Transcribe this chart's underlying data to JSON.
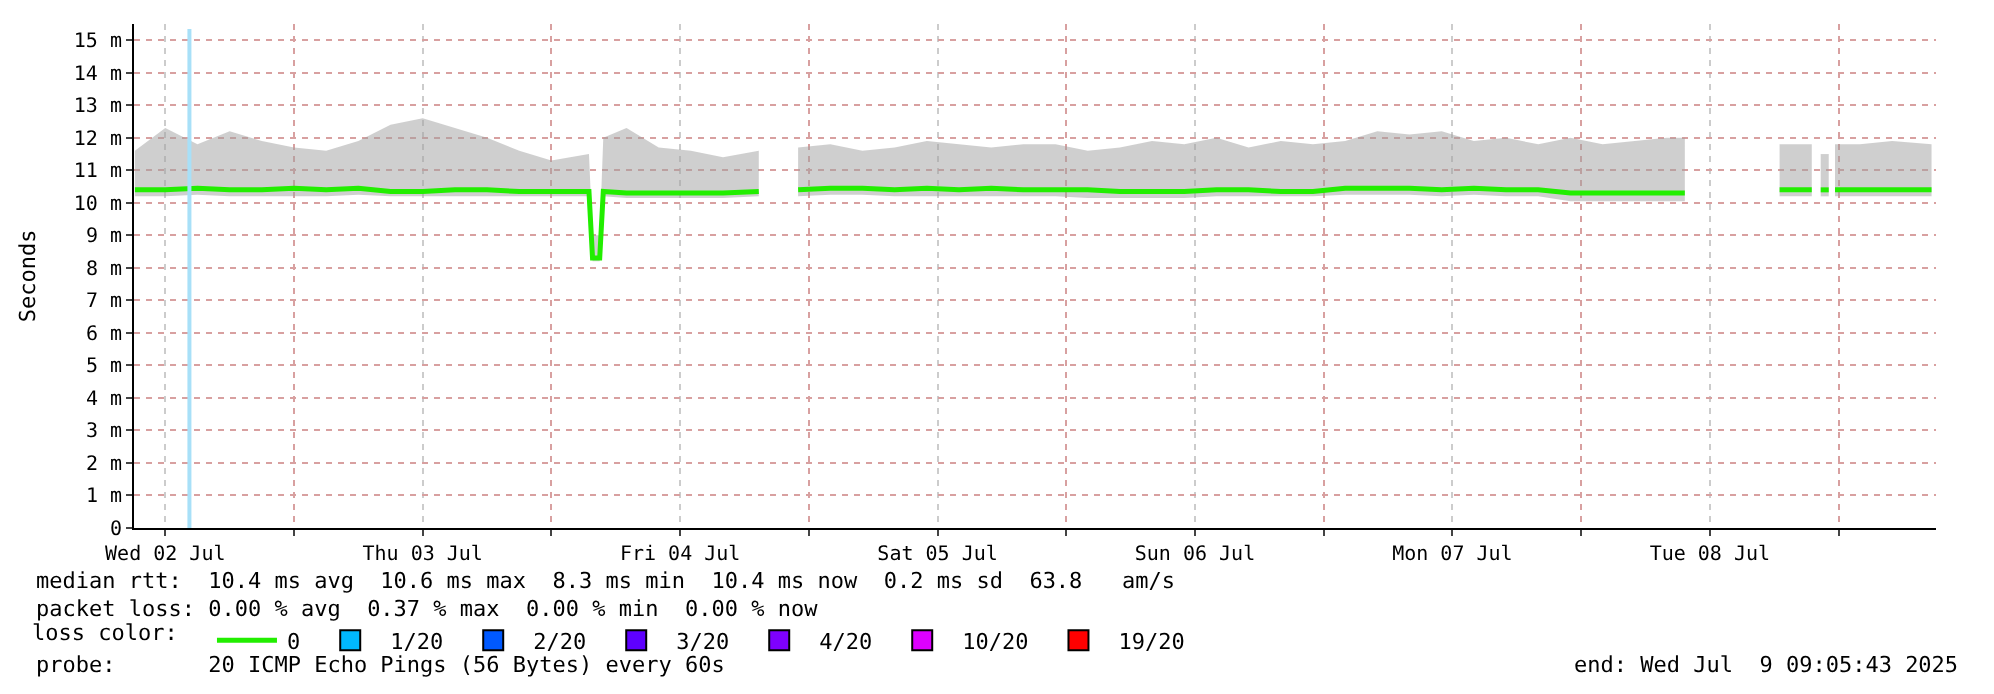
{
  "chart_data": {
    "type": "line",
    "ylabel": "Seconds",
    "legend_title": "loss color:",
    "legend": "bottom left",
    "grid": true,
    "line_style": "solid",
    "xlim": [
      "2025-07-02T09:05",
      "2025-07-09T09:05"
    ],
    "xticks": [
      {
        "value": "2025-07-02T12:00",
        "label": "Wed 02 Jul"
      },
      {
        "value": "2025-07-03T00:00",
        "label": null
      },
      {
        "value": "2025-07-03T12:00",
        "label": "Thu 03 Jul"
      },
      {
        "value": "2025-07-04T00:00",
        "label": null
      },
      {
        "value": "2025-07-04T12:00",
        "label": "Fri 04 Jul"
      },
      {
        "value": "2025-07-05T00:00",
        "label": null
      },
      {
        "value": "2025-07-05T12:00",
        "label": "Sat 05 Jul"
      },
      {
        "value": "2025-07-06T00:00",
        "label": null
      },
      {
        "value": "2025-07-06T12:00",
        "label": "Sun 06 Jul"
      },
      {
        "value": "2025-07-07T00:00",
        "label": null
      },
      {
        "value": "2025-07-07T12:00",
        "label": "Mon 07 Jul"
      },
      {
        "value": "2025-07-08T00:00",
        "label": null
      },
      {
        "value": "2025-07-08T12:00",
        "label": "Tue 08 Jul"
      },
      {
        "value": "2025-07-09T00:00",
        "label": null
      }
    ],
    "ylim": [
      0,
      15.5
    ],
    "yticks": [
      0,
      {
        "value": 1,
        "label": "1 m"
      },
      {
        "value": 2,
        "label": "2 m"
      },
      {
        "value": 3,
        "label": "3 m"
      },
      {
        "value": 4,
        "label": "4 m"
      },
      {
        "value": 5,
        "label": "5 m"
      },
      {
        "value": 6,
        "label": "6 m"
      },
      {
        "value": 7,
        "label": "7 m"
      },
      {
        "value": 8,
        "label": "8 m"
      },
      {
        "value": 9,
        "label": "9 m"
      },
      {
        "value": 10,
        "label": "10 m"
      },
      {
        "value": 11,
        "label": "11 m"
      },
      {
        "value": 12,
        "label": "12 m"
      },
      {
        "value": 13,
        "label": "13 m"
      },
      {
        "value": 14,
        "label": "14 m"
      },
      {
        "value": 15,
        "label": "15 m"
      }
    ],
    "x": [
      "2025-07-02T09:10",
      "2025-07-02T12:00",
      "2025-07-02T15:00",
      "2025-07-02T18:00",
      "2025-07-02T21:00",
      "2025-07-03T00:00",
      "2025-07-03T03:00",
      "2025-07-03T06:00",
      "2025-07-03T09:00",
      "2025-07-03T12:00",
      "2025-07-03T15:00",
      "2025-07-03T18:00",
      "2025-07-03T21:00",
      "2025-07-04T00:00",
      "2025-07-04T03:30",
      "2025-07-04T03:50",
      "2025-07-04T04:30",
      "2025-07-04T04:50",
      "2025-07-04T07:00",
      "2025-07-04T10:00",
      "2025-07-04T13:00",
      "2025-07-04T16:00",
      "2025-07-04T19:20",
      "2025-07-04T21:00",
      "2025-07-04T23:00",
      "2025-07-05T02:00",
      "2025-07-05T05:00",
      "2025-07-05T08:00",
      "2025-07-05T11:00",
      "2025-07-05T14:00",
      "2025-07-05T17:00",
      "2025-07-05T20:00",
      "2025-07-05T23:00",
      "2025-07-06T02:00",
      "2025-07-06T05:00",
      "2025-07-06T08:00",
      "2025-07-06T11:00",
      "2025-07-06T14:00",
      "2025-07-06T17:00",
      "2025-07-06T20:00",
      "2025-07-06T23:00",
      "2025-07-07T02:00",
      "2025-07-07T05:00",
      "2025-07-07T08:00",
      "2025-07-07T11:00",
      "2025-07-07T14:00",
      "2025-07-07T17:00",
      "2025-07-07T20:00",
      "2025-07-07T23:00",
      "2025-07-08T02:00",
      "2025-07-08T05:00",
      "2025-07-08T08:00",
      "2025-07-08T09:40",
      "2025-07-08T12:00",
      "2025-07-08T18:30",
      "2025-07-08T21:30",
      "2025-07-08T22:00",
      "2025-07-08T22:20",
      "2025-07-08T23:05",
      "2025-07-08T23:20",
      "2025-07-08T23:40",
      "2025-07-09T02:00",
      "2025-07-09T05:00",
      "2025-07-09T08:40"
    ],
    "series": [
      {
        "name": "0",
        "color": "#22ee00",
        "values": [
          10.4,
          10.4,
          10.45,
          10.4,
          10.4,
          10.45,
          10.4,
          10.45,
          10.35,
          10.35,
          10.4,
          10.4,
          10.35,
          10.35,
          10.35,
          8.3,
          8.3,
          10.35,
          10.3,
          10.3,
          10.3,
          10.3,
          10.35,
          null,
          10.4,
          10.45,
          10.45,
          10.4,
          10.45,
          10.4,
          10.45,
          10.4,
          10.4,
          10.4,
          10.35,
          10.35,
          10.35,
          10.4,
          10.4,
          10.35,
          10.35,
          10.45,
          10.45,
          10.45,
          10.4,
          10.45,
          10.4,
          10.4,
          10.3,
          10.3,
          10.3,
          10.3,
          10.3,
          null,
          10.4,
          10.4,
          null,
          10.4,
          10.4,
          null,
          10.4,
          10.4,
          10.4,
          10.4
        ],
        "lower": [
          10.2,
          10.2,
          10.25,
          10.2,
          10.2,
          10.2,
          10.2,
          10.25,
          10.2,
          10.2,
          10.2,
          10.2,
          10.2,
          10.2,
          10.2,
          8.2,
          8.2,
          10.2,
          10.15,
          10.15,
          10.15,
          10.15,
          10.2,
          null,
          10.2,
          10.25,
          10.25,
          10.2,
          10.2,
          10.2,
          10.2,
          10.2,
          10.2,
          10.15,
          10.15,
          10.15,
          10.15,
          10.2,
          10.2,
          10.2,
          10.2,
          10.25,
          10.25,
          10.25,
          10.2,
          10.25,
          10.2,
          10.2,
          10.05,
          10.05,
          10.05,
          10.05,
          10.05,
          null,
          10.2,
          10.2,
          null,
          10.2,
          10.2,
          null,
          10.2,
          10.2,
          10.2,
          10.2
        ],
        "upper": [
          11.6,
          12.3,
          11.8,
          12.2,
          11.9,
          11.7,
          11.6,
          11.9,
          12.4,
          12.6,
          12.3,
          12.0,
          11.6,
          11.3,
          11.5,
          9.0,
          9.0,
          12.0,
          12.3,
          11.7,
          11.6,
          11.4,
          11.6,
          null,
          11.7,
          11.8,
          11.6,
          11.7,
          11.9,
          11.8,
          11.7,
          11.8,
          11.8,
          11.6,
          11.7,
          11.9,
          11.8,
          12.0,
          11.7,
          11.9,
          11.8,
          11.9,
          12.2,
          12.1,
          12.2,
          11.9,
          12.0,
          11.8,
          12.0,
          11.8,
          11.9,
          12.0,
          12.0,
          null,
          11.8,
          11.8,
          null,
          11.5,
          11.5,
          null,
          11.8,
          11.8,
          11.9,
          11.8
        ]
      },
      {
        "name": "1/20",
        "color": "#00b8ff",
        "values": [
          null,
          null,
          null,
          null,
          null,
          null,
          null,
          null,
          null,
          null,
          null,
          null,
          null,
          null,
          null,
          null,
          null,
          null,
          null,
          null,
          null,
          null,
          null,
          null,
          null,
          null,
          null,
          null,
          null,
          null,
          null,
          null,
          null,
          null,
          null,
          null,
          null,
          null,
          null,
          null,
          null,
          null,
          null,
          null,
          null,
          null,
          null,
          null,
          null,
          null,
          null,
          null,
          null,
          null,
          null,
          null,
          null,
          null,
          null,
          null,
          null,
          null,
          null,
          null
        ]
      },
      {
        "name": "2/20",
        "color": "#0059ff",
        "values": [
          null,
          null,
          null,
          null,
          null,
          null,
          null,
          null,
          null,
          null,
          null,
          null,
          null,
          null,
          null,
          null,
          null,
          null,
          null,
          null,
          null,
          null,
          null,
          null,
          null,
          null,
          null,
          null,
          null,
          null,
          null,
          null,
          null,
          null,
          null,
          null,
          null,
          null,
          null,
          null,
          null,
          null,
          null,
          null,
          null,
          null,
          null,
          null,
          null,
          null,
          null,
          null,
          null,
          null,
          null,
          null,
          null,
          null,
          null,
          null,
          null,
          null,
          null,
          null
        ]
      },
      {
        "name": "3/20",
        "color": "#5e00ff",
        "values": [
          null,
          null,
          null,
          null,
          null,
          null,
          null,
          null,
          null,
          null,
          null,
          null,
          null,
          null,
          null,
          null,
          null,
          null,
          null,
          null,
          null,
          null,
          null,
          null,
          null,
          null,
          null,
          null,
          null,
          null,
          null,
          null,
          null,
          null,
          null,
          null,
          null,
          null,
          null,
          null,
          null,
          null,
          null,
          null,
          null,
          null,
          null,
          null,
          null,
          null,
          null,
          null,
          null,
          null,
          null,
          null,
          null,
          null,
          null,
          null,
          null,
          null,
          null,
          null
        ]
      },
      {
        "name": "4/20",
        "color": "#7e00ff",
        "values": [
          null,
          null,
          null,
          null,
          null,
          null,
          null,
          null,
          null,
          null,
          null,
          null,
          null,
          null,
          null,
          null,
          null,
          null,
          null,
          null,
          null,
          null,
          null,
          null,
          null,
          null,
          null,
          null,
          null,
          null,
          null,
          null,
          null,
          null,
          null,
          null,
          null,
          null,
          null,
          null,
          null,
          null,
          null,
          null,
          null,
          null,
          null,
          null,
          null,
          null,
          null,
          null,
          null,
          null,
          null,
          null,
          null,
          null,
          null,
          null,
          null,
          null,
          null,
          null
        ]
      },
      {
        "name": "10/20",
        "color": "#dd00ff",
        "values": [
          null,
          null,
          null,
          null,
          null,
          null,
          null,
          null,
          null,
          null,
          null,
          null,
          null,
          null,
          null,
          null,
          null,
          null,
          null,
          null,
          null,
          null,
          null,
          null,
          null,
          null,
          null,
          null,
          null,
          null,
          null,
          null,
          null,
          null,
          null,
          null,
          null,
          null,
          null,
          null,
          null,
          null,
          null,
          null,
          null,
          null,
          null,
          null,
          null,
          null,
          null,
          null,
          null,
          null,
          null,
          null,
          null,
          null,
          null,
          null,
          null,
          null,
          null,
          null
        ]
      },
      {
        "name": "19/20",
        "color": "#ff0000",
        "values": [
          null,
          null,
          null,
          null,
          null,
          null,
          null,
          null,
          null,
          null,
          null,
          null,
          null,
          null,
          null,
          null,
          null,
          null,
          null,
          null,
          null,
          null,
          null,
          null,
          null,
          null,
          null,
          null,
          null,
          null,
          null,
          null,
          null,
          null,
          null,
          null,
          null,
          null,
          null,
          null,
          null,
          null,
          null,
          null,
          null,
          null,
          null,
          null,
          null,
          null,
          null,
          null,
          null,
          null,
          null,
          null,
          null,
          null,
          null,
          null,
          null,
          null,
          null,
          null
        ]
      }
    ],
    "ref_lines": [
      {
        "axis": "x",
        "value": "2025-07-02T14:15",
        "color": "#a8e0f8"
      }
    ],
    "annotations": [
      "median rtt:  10.4 ms avg  10.6 ms max  8.3 ms min  10.4 ms now  0.2 ms sd  63.8   am/s",
      "packet loss: 0.00 % avg  0.37 % max  0.00 % min  0.00 % now",
      "probe:       20 ICMP Echo Pings (56 Bytes) every 60s",
      "end: Wed Jul  9 09:05:43 2025"
    ]
  }
}
